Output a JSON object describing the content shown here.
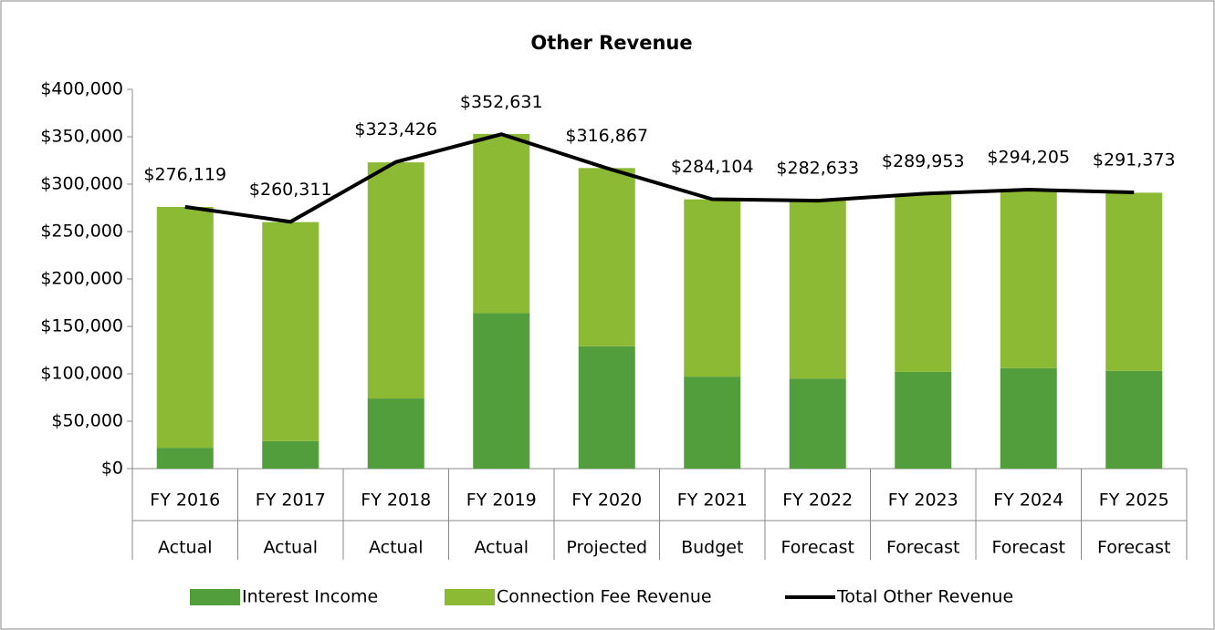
{
  "chart_data": {
    "type": "bar-line",
    "title": "Other Revenue",
    "categories": [
      [
        "FY 2016",
        "Actual"
      ],
      [
        "FY 2017",
        "Actual"
      ],
      [
        "FY 2018",
        "Actual"
      ],
      [
        "FY 2019",
        "Actual"
      ],
      [
        "FY 2020",
        "Projected"
      ],
      [
        "FY 2021",
        "Budget"
      ],
      [
        "FY 2022",
        "Forecast"
      ],
      [
        "FY 2023",
        "Forecast"
      ],
      [
        "FY 2024",
        "Forecast"
      ],
      [
        "FY 2025",
        "Forecast"
      ]
    ],
    "series": [
      {
        "name": "Interest Income",
        "color": "#539e3c",
        "stacked": true,
        "values": [
          22000,
          29000,
          74000,
          164000,
          129000,
          97000,
          95000,
          102000,
          106000,
          103000
        ]
      },
      {
        "name": "Connection Fee Revenue",
        "color": "#8cba35",
        "stacked": true,
        "values": [
          254000,
          231000,
          249000,
          189000,
          188000,
          187000,
          188000,
          188000,
          188000,
          188000
        ]
      },
      {
        "name": "Total Other Revenue",
        "color": "#000000",
        "type": "line",
        "values": [
          276119,
          260311,
          323426,
          352631,
          316867,
          284104,
          282633,
          289953,
          294205,
          291373
        ],
        "value_labels": [
          "$276,119",
          "$260,311",
          "$323,426",
          "$352,631",
          "$316,867",
          "$284,104",
          "$282,633",
          "$289,953",
          "$294,205",
          "$291,373"
        ]
      }
    ],
    "ylim": [
      0,
      400000
    ],
    "yticks": [
      {
        "value": 0,
        "label": "$0"
      },
      {
        "value": 50000,
        "label": "$50,000"
      },
      {
        "value": 100000,
        "label": "$100,000"
      },
      {
        "value": 150000,
        "label": "$150,000"
      },
      {
        "value": 200000,
        "label": "$200,000"
      },
      {
        "value": 250000,
        "label": "$250,000"
      },
      {
        "value": 300000,
        "label": "$300,000"
      },
      {
        "value": 350000,
        "label": "$350,000"
      },
      {
        "value": 400000,
        "label": "$400,000"
      }
    ],
    "legend": "bottom"
  }
}
